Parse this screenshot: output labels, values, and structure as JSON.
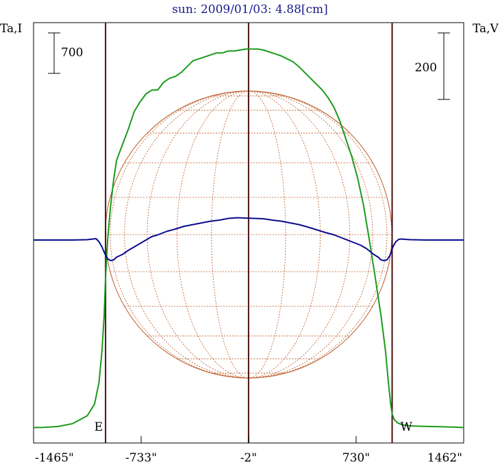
{
  "chart_data": {
    "type": "line",
    "title": "sun: 2009/01/03: 4.88[cm]",
    "left_axis_label": "Ta,I",
    "right_axis_label": "Ta,V",
    "x_unit": "arcsec",
    "x_ticks": [
      {
        "value": -1465,
        "label": "-1465\""
      },
      {
        "value": -733,
        "label": "-733\""
      },
      {
        "value": -2,
        "label": "-2\""
      },
      {
        "value": 730,
        "label": "730\""
      },
      {
        "value": 1462,
        "label": "1462\""
      }
    ],
    "xlim": [
      -1465,
      1462
    ],
    "scale_bars": [
      {
        "axis": "I",
        "value": 700,
        "label": "700"
      },
      {
        "axis": "V",
        "value": 200,
        "label": "200"
      }
    ],
    "limb_markers": [
      {
        "label": "E",
        "x": -975
      },
      {
        "label": "W",
        "x": 975
      }
    ],
    "center_line_x": -2,
    "solar_radius_arcsec": 975,
    "grid": false,
    "colors": {
      "intensity": "#1a9a1a",
      "polarization": "#0a0a8c",
      "disk": "#b8541e",
      "limb_lines": "#4a1010"
    },
    "series": [
      {
        "key": "I",
        "color": "#1a9a1a",
        "x": [
          -1465,
          -1400,
          -1300,
          -1200,
          -1100,
          -1050,
          -1020,
          -1000,
          -985,
          -975,
          -960,
          -940,
          -920,
          -900,
          -860,
          -820,
          -780,
          -740,
          -700,
          -660,
          -620,
          -580,
          -540,
          -500,
          -460,
          -420,
          -380,
          -340,
          -300,
          -260,
          -220,
          -180,
          -140,
          -100,
          -60,
          -20,
          20,
          60,
          100,
          140,
          180,
          220,
          260,
          300,
          340,
          380,
          420,
          460,
          500,
          540,
          580,
          620,
          660,
          700,
          740,
          780,
          820,
          860,
          900,
          930,
          950,
          965,
          975,
          990,
          1010,
          1040,
          1080,
          1120,
          1200,
          1300,
          1400,
          1462
        ],
        "values": [
          30,
          31,
          35,
          50,
          90,
          150,
          260,
          420,
          600,
          800,
          1000,
          1170,
          1300,
          1400,
          1480,
          1560,
          1650,
          1700,
          1740,
          1760,
          1760,
          1800,
          1820,
          1830,
          1850,
          1880,
          1910,
          1920,
          1930,
          1940,
          1950,
          1950,
          1960,
          1960,
          1965,
          1970,
          1970,
          1970,
          1965,
          1955,
          1945,
          1935,
          1920,
          1905,
          1880,
          1850,
          1820,
          1790,
          1760,
          1720,
          1670,
          1600,
          1510,
          1420,
          1310,
          1170,
          990,
          800,
          600,
          420,
          260,
          150,
          100,
          70,
          55,
          45,
          40,
          38,
          36,
          34,
          32,
          30
        ]
      },
      {
        "key": "V",
        "color": "#0a0a8c",
        "x": [
          -1465,
          -1300,
          -1200,
          -1100,
          -1060,
          -1040,
          -1020,
          -1000,
          -980,
          -960,
          -940,
          -920,
          -900,
          -860,
          -820,
          -780,
          -740,
          -700,
          -660,
          -620,
          -560,
          -500,
          -440,
          -380,
          -320,
          -260,
          -200,
          -140,
          -80,
          -20,
          40,
          100,
          160,
          220,
          280,
          340,
          400,
          460,
          520,
          580,
          640,
          700,
          760,
          800,
          850,
          880,
          900,
          920,
          940,
          960,
          980,
          1000,
          1020,
          1040,
          1060,
          1100,
          1200,
          1300,
          1462
        ],
        "values": [
          0,
          0,
          0,
          1,
          3,
          4,
          -5,
          -20,
          -40,
          -55,
          -60,
          -58,
          -50,
          -42,
          -30,
          -20,
          -10,
          0,
          10,
          15,
          25,
          32,
          40,
          45,
          50,
          55,
          58,
          63,
          65,
          64,
          63,
          62,
          58,
          55,
          50,
          45,
          38,
          30,
          22,
          15,
          5,
          -5,
          -15,
          -25,
          -42,
          -50,
          -58,
          -60,
          -58,
          -45,
          -20,
          -5,
          2,
          3,
          2,
          1,
          0,
          0,
          0
        ]
      }
    ]
  }
}
